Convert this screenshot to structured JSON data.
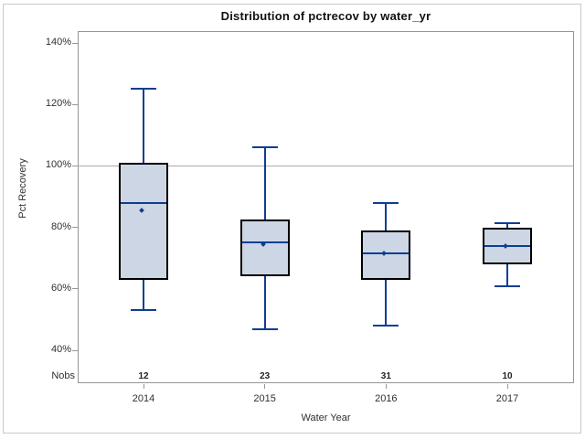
{
  "chart_data": {
    "type": "box",
    "title": "Distribution of pctrecov by water_yr",
    "xlabel": "Water Year",
    "ylabel": "Pct Recovery",
    "nobs_label": "Nobs",
    "categories": [
      "2014",
      "2015",
      "2016",
      "2017"
    ],
    "nobs": [
      12,
      23,
      31,
      10
    ],
    "boxes": [
      {
        "category": "2014",
        "nobs": 12,
        "whisker_low": 53,
        "q1": 63,
        "median": 88,
        "q3": 101,
        "whisker_high": 125,
        "mean": 85
      },
      {
        "category": "2015",
        "nobs": 23,
        "whisker_low": 47,
        "q1": 64,
        "median": 75,
        "q3": 82.5,
        "whisker_high": 106,
        "mean": 74
      },
      {
        "category": "2016",
        "nobs": 31,
        "whisker_low": 48,
        "q1": 63,
        "median": 71.5,
        "q3": 79,
        "whisker_high": 88,
        "mean": 71
      },
      {
        "category": "2017",
        "nobs": 10,
        "whisker_low": 61,
        "q1": 68,
        "median": 74,
        "q3": 80,
        "whisker_high": 81.5,
        "mean": 73.5
      }
    ],
    "y_ticks": [
      {
        "value": 140,
        "label": "140%"
      },
      {
        "value": 120,
        "label": "120%"
      },
      {
        "value": 100,
        "label": "100%"
      },
      {
        "value": 80,
        "label": "80%"
      },
      {
        "value": 60,
        "label": "60%"
      },
      {
        "value": 40,
        "label": "40%"
      }
    ],
    "ylim": [
      29.3,
      143.9
    ],
    "reference_line": 100,
    "grid": false,
    "legend": "none"
  },
  "colors": {
    "box_fill": "#ccd6e4",
    "box_border": "#000000",
    "line_blue": "#0e3d94",
    "reference_line": "#ababab",
    "axis_gray": "#949699",
    "frame_gray": "#c9c9c9"
  }
}
